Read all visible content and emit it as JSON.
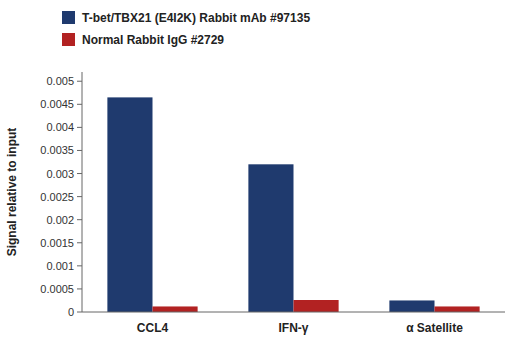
{
  "chart_data": {
    "type": "bar",
    "categories": [
      "CCL4",
      "IFN-γ",
      "α Satellite"
    ],
    "series": [
      {
        "name": "T-bet/TBX21 (E4I2K) Rabbit mAb #97135",
        "color": "#1F3A6E",
        "values": [
          0.00465,
          0.0032,
          0.00025
        ]
      },
      {
        "name": "Normal Rabbit IgG #2729",
        "color": "#B22222",
        "values": [
          0.00012,
          0.00026,
          0.00012
        ]
      }
    ],
    "ylabel": "Signal relative to input",
    "ylim": [
      0,
      0.0052
    ],
    "yticks": [
      0,
      0.0005,
      0.001,
      0.0015,
      0.002,
      0.0025,
      0.003,
      0.0035,
      0.004,
      0.0045,
      0.005
    ],
    "grid": false,
    "legend": "top-left"
  }
}
